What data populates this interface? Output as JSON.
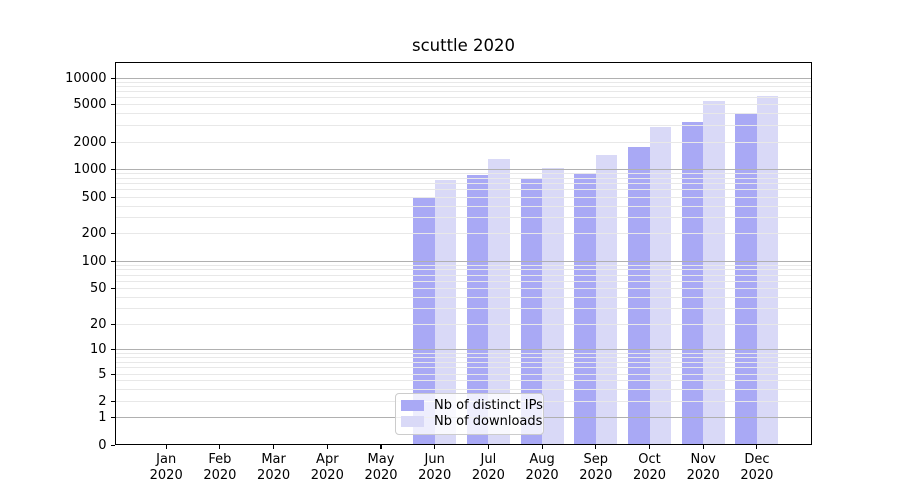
{
  "title": "scuttle 2020",
  "colors": {
    "distinct_ips": "#a9a9f5",
    "downloads": "#d9d9f7",
    "grid_major": "#b0b0b0",
    "grid_minor": "#e8e8e8",
    "spine": "#000000"
  },
  "legend": {
    "items": [
      {
        "label": "Nb of distinct IPs",
        "color": "#a9a9f5"
      },
      {
        "label": "Nb of downloads",
        "color": "#d9d9f7"
      }
    ]
  },
  "chart_data": {
    "type": "bar",
    "title": "scuttle 2020",
    "categories": [
      "Jan 2020",
      "Feb 2020",
      "Mar 2020",
      "Apr 2020",
      "May 2020",
      "Jun 2020",
      "Jul 2020",
      "Aug 2020",
      "Sep 2020",
      "Oct 2020",
      "Nov 2020",
      "Dec 2020"
    ],
    "series": [
      {
        "name": "Nb of distinct IPs",
        "color": "#a9a9f5",
        "values": [
          0,
          0,
          0,
          0,
          0,
          505,
          870,
          780,
          920,
          1740,
          3260,
          4000
        ]
      },
      {
        "name": "Nb of downloads",
        "color": "#d9d9f7",
        "values": [
          0,
          0,
          0,
          0,
          0,
          760,
          1290,
          1030,
          1420,
          2920,
          5550,
          6330
        ]
      }
    ],
    "xlabel": "",
    "ylabel": "",
    "y_scale": "symlog",
    "y_ticks": [
      0,
      1,
      2,
      5,
      10,
      20,
      50,
      100,
      200,
      500,
      1000,
      2000,
      5000,
      10000
    ],
    "ylim": [
      0,
      20000
    ],
    "grid": true,
    "legend_position": "lower center"
  }
}
